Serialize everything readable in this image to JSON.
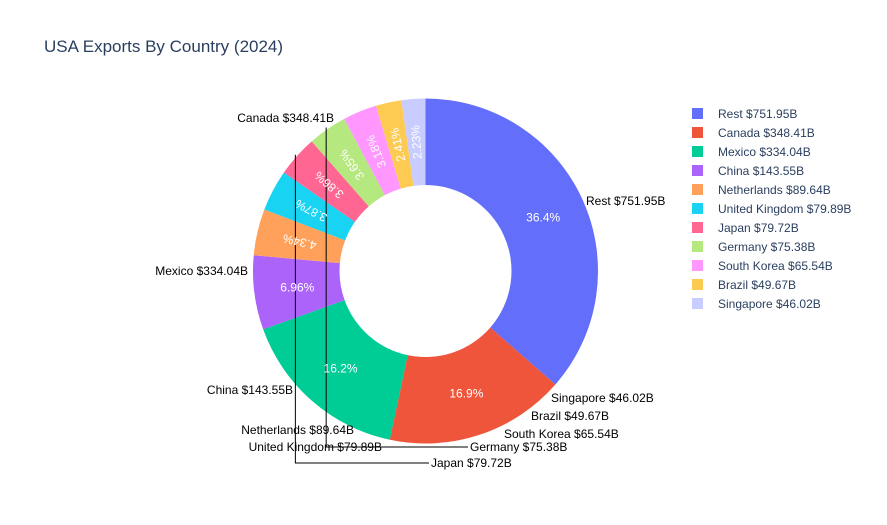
{
  "chart_data": {
    "type": "pie",
    "hole": true,
    "title": "USA Exports By Country (2024)",
    "legend_position": "right",
    "categories": [
      "Rest $751.95B",
      "Canada $348.41B",
      "Mexico $334.04B",
      "China $143.55B",
      "Netherlands $89.64B",
      "United Kingdom $79.89B",
      "Japan $79.72B",
      "Germany $75.38B",
      "South Korea $65.54B",
      "Brazil $49.67B",
      "Singapore $46.02B"
    ],
    "values": [
      751.95,
      348.41,
      334.04,
      143.55,
      89.64,
      79.89,
      79.72,
      75.38,
      65.54,
      49.67,
      46.02
    ],
    "percent_labels": [
      "36.4%",
      "16.9%",
      "16.2%",
      "6.96%",
      "4.34%",
      "3.87%",
      "3.86%",
      "3.65%",
      "3.18%",
      "2.41%",
      "2.23%"
    ],
    "colors": [
      "#636efa",
      "#ef553b",
      "#00cc96",
      "#ab63fa",
      "#ffa15a",
      "#19d3f3",
      "#ff6692",
      "#b6e880",
      "#ff97ff",
      "#fecb52",
      "#c8ccff"
    ]
  }
}
